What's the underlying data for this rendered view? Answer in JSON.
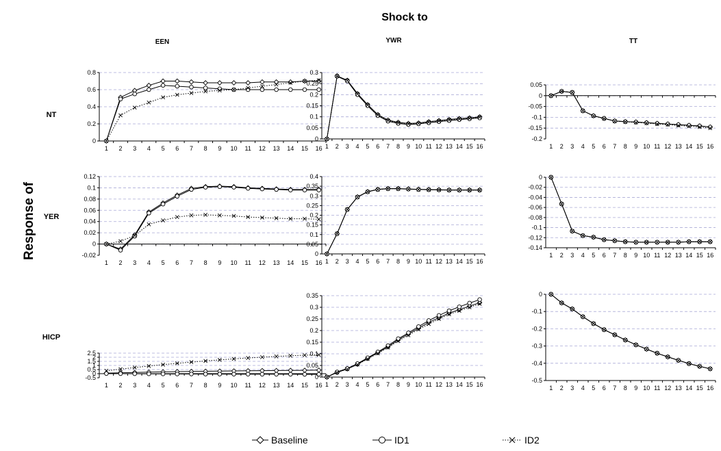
{
  "figure": {
    "title": "Shock to",
    "row_axis_title": "Response of",
    "columns": [
      "EEN",
      "YWR",
      "TT"
    ],
    "rows": [
      "NT",
      "YER",
      "HICP"
    ]
  },
  "legend": [
    {
      "name": "Baseline",
      "marker": "diamond",
      "dash": "solid"
    },
    {
      "name": "ID1",
      "marker": "circle",
      "dash": "solid"
    },
    {
      "name": "ID2",
      "marker": "x",
      "dash": "dotted"
    }
  ],
  "chart_data": [
    {
      "type": "line",
      "shock": "EEN",
      "response": "NT",
      "x": [
        1,
        2,
        3,
        4,
        5,
        6,
        7,
        8,
        9,
        10,
        11,
        12,
        13,
        14,
        15,
        16
      ],
      "ylim": [
        0,
        0.8
      ],
      "yticks": [
        "0",
        "0.2",
        "0.4",
        "0.6",
        "0.8"
      ],
      "ytick_values": [
        0,
        0.2,
        0.4,
        0.6,
        0.8
      ],
      "grid": true,
      "series": [
        {
          "name": "Baseline",
          "values": [
            0,
            0.51,
            0.59,
            0.65,
            0.7,
            0.7,
            0.69,
            0.68,
            0.68,
            0.68,
            0.68,
            0.69,
            0.69,
            0.69,
            0.7,
            0.7
          ]
        },
        {
          "name": "ID1",
          "values": [
            0,
            0.49,
            0.55,
            0.6,
            0.65,
            0.64,
            0.63,
            0.62,
            0.61,
            0.6,
            0.6,
            0.6,
            0.6,
            0.6,
            0.6,
            0.6
          ]
        },
        {
          "name": "ID2",
          "values": [
            0,
            0.3,
            0.39,
            0.45,
            0.51,
            0.54,
            0.56,
            0.58,
            0.59,
            0.6,
            0.62,
            0.64,
            0.66,
            0.68,
            0.7,
            0.71
          ]
        }
      ]
    },
    {
      "type": "line",
      "shock": "YWR",
      "response": "NT",
      "x": [
        1,
        2,
        3,
        4,
        5,
        6,
        7,
        8,
        9,
        10,
        11,
        12,
        13,
        14,
        15,
        16
      ],
      "ylim": [
        0,
        0.3
      ],
      "yticks": [
        "0",
        "0.05",
        "0.1",
        "0.15",
        "0.2",
        "0.25",
        "0.3"
      ],
      "ytick_values": [
        0,
        0.05,
        0.1,
        0.15,
        0.2,
        0.25,
        0.3
      ],
      "grid": true,
      "series": [
        {
          "name": "Baseline",
          "values": [
            0,
            0.285,
            0.265,
            0.205,
            0.155,
            0.11,
            0.085,
            0.075,
            0.07,
            0.072,
            0.078,
            0.083,
            0.088,
            0.092,
            0.095,
            0.1
          ]
        },
        {
          "name": "ID1",
          "values": [
            0,
            0.283,
            0.262,
            0.2,
            0.15,
            0.105,
            0.08,
            0.07,
            0.065,
            0.068,
            0.073,
            0.078,
            0.083,
            0.087,
            0.091,
            0.095
          ]
        },
        {
          "name": "ID2",
          "values": [
            0,
            0.284,
            0.264,
            0.203,
            0.153,
            0.108,
            0.083,
            0.073,
            0.068,
            0.07,
            0.076,
            0.081,
            0.086,
            0.09,
            0.093,
            0.098
          ]
        }
      ]
    },
    {
      "type": "line",
      "shock": "TT",
      "response": "NT",
      "x": [
        1,
        2,
        3,
        4,
        5,
        6,
        7,
        8,
        9,
        10,
        11,
        12,
        13,
        14,
        15,
        16
      ],
      "ylim": [
        -0.2,
        0.05
      ],
      "yticks": [
        "-0.2",
        "-0.15",
        "-0.1",
        "-0.05",
        "0",
        "0.05"
      ],
      "ytick_values": [
        -0.2,
        -0.15,
        -0.1,
        -0.05,
        0,
        0.05
      ],
      "grid": true,
      "series": [
        {
          "name": "Baseline",
          "values": [
            0,
            0.02,
            0.015,
            -0.07,
            -0.093,
            -0.105,
            -0.117,
            -0.12,
            -0.122,
            -0.125,
            -0.128,
            -0.131,
            -0.134,
            -0.137,
            -0.14,
            -0.145
          ]
        },
        {
          "name": "ID1",
          "values": [
            0,
            0.02,
            0.015,
            -0.07,
            -0.093,
            -0.105,
            -0.117,
            -0.12,
            -0.122,
            -0.125,
            -0.128,
            -0.131,
            -0.134,
            -0.137,
            -0.14,
            -0.145
          ]
        },
        {
          "name": "ID2",
          "values": [
            0,
            0.02,
            0.015,
            -0.07,
            -0.094,
            -0.106,
            -0.118,
            -0.121,
            -0.124,
            -0.127,
            -0.131,
            -0.134,
            -0.138,
            -0.141,
            -0.145,
            -0.15
          ]
        }
      ]
    },
    {
      "type": "line",
      "shock": "EEN",
      "response": "YER",
      "x": [
        1,
        2,
        3,
        4,
        5,
        6,
        7,
        8,
        9,
        10,
        11,
        12,
        13,
        14,
        15,
        16
      ],
      "ylim": [
        -0.02,
        0.12
      ],
      "yticks": [
        "-0.02",
        "0",
        "0.02",
        "0.04",
        "0.06",
        "0.08",
        "0.1",
        "0.12"
      ],
      "ytick_values": [
        -0.02,
        0,
        0.02,
        0.04,
        0.06,
        0.08,
        0.1,
        0.12
      ],
      "grid": true,
      "series": [
        {
          "name": "Baseline",
          "values": [
            0,
            -0.009,
            0.016,
            0.057,
            0.073,
            0.087,
            0.099,
            0.102,
            0.103,
            0.102,
            0.1,
            0.099,
            0.098,
            0.097,
            0.097,
            0.097
          ]
        },
        {
          "name": "ID1",
          "values": [
            0,
            -0.011,
            0.014,
            0.055,
            0.071,
            0.085,
            0.097,
            0.101,
            0.102,
            0.101,
            0.099,
            0.098,
            0.097,
            0.096,
            0.096,
            0.096
          ]
        },
        {
          "name": "ID2",
          "values": [
            0,
            0.005,
            0.015,
            0.035,
            0.042,
            0.048,
            0.051,
            0.052,
            0.051,
            0.05,
            0.048,
            0.047,
            0.046,
            0.045,
            0.045,
            0.044
          ]
        }
      ]
    },
    {
      "type": "line",
      "shock": "YWR",
      "response": "YER",
      "x": [
        1,
        2,
        3,
        4,
        5,
        6,
        7,
        8,
        9,
        10,
        11,
        12,
        13,
        14,
        15,
        16
      ],
      "ylim": [
        0,
        0.4
      ],
      "yticks": [
        "0",
        "0.05",
        "0.1",
        "0.15",
        "0.2",
        "0.25",
        "0.3",
        "0.35",
        "0.4"
      ],
      "ytick_values": [
        0,
        0.05,
        0.1,
        0.15,
        0.2,
        0.25,
        0.3,
        0.35,
        0.4
      ],
      "grid": true,
      "series": [
        {
          "name": "Baseline",
          "values": [
            0,
            0.105,
            0.23,
            0.295,
            0.322,
            0.334,
            0.338,
            0.338,
            0.336,
            0.334,
            0.333,
            0.332,
            0.331,
            0.331,
            0.331,
            0.331
          ]
        },
        {
          "name": "ID1",
          "values": [
            0,
            0.104,
            0.229,
            0.294,
            0.321,
            0.333,
            0.337,
            0.337,
            0.335,
            0.333,
            0.332,
            0.331,
            0.33,
            0.33,
            0.33,
            0.33
          ]
        },
        {
          "name": "ID2",
          "values": [
            0,
            0.105,
            0.23,
            0.294,
            0.321,
            0.333,
            0.337,
            0.337,
            0.335,
            0.333,
            0.332,
            0.331,
            0.33,
            0.33,
            0.33,
            0.33
          ]
        }
      ]
    },
    {
      "type": "line",
      "shock": "TT",
      "response": "YER",
      "x": [
        1,
        2,
        3,
        4,
        5,
        6,
        7,
        8,
        9,
        10,
        11,
        12,
        13,
        14,
        15,
        16
      ],
      "ylim": [
        -0.14,
        0
      ],
      "yticks": [
        "-0.14",
        "-0.12",
        "-0.1",
        "-0.08",
        "-0.06",
        "-0.04",
        "-0.02",
        "0"
      ],
      "ytick_values": [
        -0.14,
        -0.12,
        -0.1,
        -0.08,
        -0.06,
        -0.04,
        -0.02,
        0
      ],
      "grid": true,
      "series": [
        {
          "name": "Baseline",
          "values": [
            0,
            -0.053,
            -0.107,
            -0.116,
            -0.119,
            -0.124,
            -0.126,
            -0.128,
            -0.129,
            -0.129,
            -0.129,
            -0.129,
            -0.129,
            -0.128,
            -0.128,
            -0.128
          ]
        },
        {
          "name": "ID1",
          "values": [
            0,
            -0.053,
            -0.107,
            -0.116,
            -0.119,
            -0.124,
            -0.126,
            -0.128,
            -0.129,
            -0.129,
            -0.129,
            -0.129,
            -0.129,
            -0.128,
            -0.128,
            -0.128
          ]
        },
        {
          "name": "ID2",
          "values": [
            0,
            -0.053,
            -0.107,
            -0.116,
            -0.119,
            -0.124,
            -0.126,
            -0.128,
            -0.129,
            -0.129,
            -0.129,
            -0.129,
            -0.129,
            -0.128,
            -0.128,
            -0.128
          ]
        }
      ]
    },
    {
      "type": "line",
      "shock": "EEN",
      "response": "HICP",
      "x": [
        1,
        2,
        3,
        4,
        5,
        6,
        7,
        8,
        9,
        10,
        11,
        12,
        13,
        14,
        15,
        16
      ],
      "ylim": [
        -0.5,
        2.5
      ],
      "yticks": [
        "-0.5",
        "0",
        "0.5",
        "1",
        "1.5",
        "2",
        "2.5"
      ],
      "ytick_values": [
        -0.5,
        0,
        0.5,
        1,
        1.5,
        2,
        2.5
      ],
      "grid": true,
      "series": [
        {
          "name": "Baseline",
          "values": [
            0.07,
            0.11,
            0.15,
            0.19,
            0.22,
            0.25,
            0.27,
            0.29,
            0.31,
            0.33,
            0.35,
            0.37,
            0.38,
            0.4,
            0.41,
            0.43
          ]
        },
        {
          "name": "ID1",
          "values": [
            0.01,
            0.0,
            -0.01,
            -0.02,
            -0.03,
            -0.04,
            -0.04,
            -0.05,
            -0.05,
            -0.06,
            -0.06,
            -0.07,
            -0.07,
            -0.07,
            -0.08,
            -0.08
          ]
        },
        {
          "name": "ID2",
          "values": [
            0.35,
            0.55,
            0.75,
            0.93,
            1.1,
            1.26,
            1.41,
            1.55,
            1.68,
            1.8,
            1.91,
            2.01,
            2.1,
            2.18,
            2.25,
            2.3
          ]
        }
      ]
    },
    {
      "type": "line",
      "shock": "YWR",
      "response": "HICP",
      "x": [
        1,
        2,
        3,
        4,
        5,
        6,
        7,
        8,
        9,
        10,
        11,
        12,
        13,
        14,
        15,
        16
      ],
      "ylim": [
        0,
        0.35
      ],
      "yticks": [
        "0",
        "0.05",
        "0.1",
        "0.15",
        "0.2",
        "0.25",
        "0.3",
        "0.35"
      ],
      "ytick_values": [
        0,
        0.05,
        0.1,
        0.15,
        0.2,
        0.25,
        0.3,
        0.35
      ],
      "grid": true,
      "series": [
        {
          "name": "Baseline",
          "values": [
            0,
            0.02,
            0.035,
            0.055,
            0.08,
            0.105,
            0.13,
            0.16,
            0.185,
            0.21,
            0.235,
            0.255,
            0.275,
            0.29,
            0.305,
            0.32
          ]
        },
        {
          "name": "ID1",
          "values": [
            0,
            0.022,
            0.037,
            0.058,
            0.083,
            0.108,
            0.135,
            0.165,
            0.19,
            0.217,
            0.243,
            0.265,
            0.285,
            0.302,
            0.318,
            0.333
          ]
        },
        {
          "name": "ID2",
          "values": [
            0,
            0.02,
            0.034,
            0.054,
            0.078,
            0.102,
            0.127,
            0.155,
            0.18,
            0.205,
            0.228,
            0.25,
            0.27,
            0.285,
            0.3,
            0.315
          ]
        }
      ]
    },
    {
      "type": "line",
      "shock": "TT",
      "response": "HICP",
      "x": [
        1,
        2,
        3,
        4,
        5,
        6,
        7,
        8,
        9,
        10,
        11,
        12,
        13,
        14,
        15,
        16
      ],
      "ylim": [
        -0.5,
        0
      ],
      "yticks": [
        "-0.5",
        "-0.4",
        "-0.3",
        "-0.2",
        "-0.1",
        "0"
      ],
      "ytick_values": [
        -0.5,
        -0.4,
        -0.3,
        -0.2,
        -0.1,
        0
      ],
      "grid": true,
      "series": [
        {
          "name": "Baseline",
          "values": [
            0,
            -0.05,
            -0.085,
            -0.13,
            -0.17,
            -0.205,
            -0.235,
            -0.265,
            -0.293,
            -0.318,
            -0.342,
            -0.363,
            -0.383,
            -0.402,
            -0.418,
            -0.432
          ]
        },
        {
          "name": "ID1",
          "values": [
            0,
            -0.05,
            -0.085,
            -0.13,
            -0.17,
            -0.205,
            -0.235,
            -0.265,
            -0.293,
            -0.318,
            -0.342,
            -0.363,
            -0.383,
            -0.402,
            -0.418,
            -0.432
          ]
        },
        {
          "name": "ID2",
          "values": [
            0,
            -0.05,
            -0.085,
            -0.13,
            -0.17,
            -0.205,
            -0.235,
            -0.265,
            -0.293,
            -0.318,
            -0.342,
            -0.363,
            -0.383,
            -0.402,
            -0.418,
            -0.432
          ]
        }
      ]
    }
  ]
}
